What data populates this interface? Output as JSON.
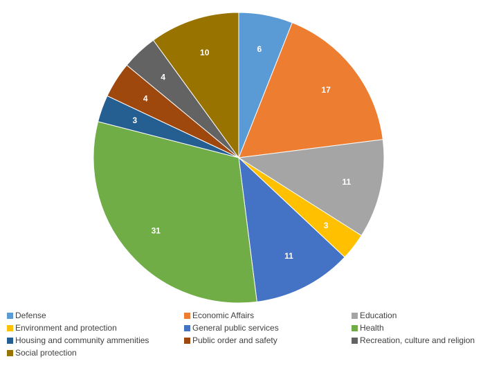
{
  "chart_data": {
    "type": "pie",
    "title": "",
    "categories": [
      "Defense",
      "Economic Affairs",
      "Education",
      "Environment and protection",
      "General public services",
      "Health",
      "Housing and community ammenities",
      "Public order and safety",
      "Recreation, culture and religion",
      "Social protection"
    ],
    "values": [
      6,
      17,
      11,
      3,
      11,
      31,
      3,
      4,
      4,
      10
    ],
    "value_labels": [
      "6",
      "17",
      "11",
      "3",
      "11",
      "31",
      "3",
      "4",
      "4",
      "10"
    ],
    "colors": [
      "#5b9bd5",
      "#ed7d31",
      "#a5a5a5",
      "#ffc000",
      "#4472c4",
      "#70ad47",
      "#255e91",
      "#9e480e",
      "#636363",
      "#997300"
    ],
    "label_colors": [
      "#ffffff",
      "#ffffff",
      "#ffffff",
      "#ffffff",
      "#ffffff",
      "#ffffff",
      "#ffffff",
      "#ffffff",
      "#ffffff",
      "#ffffff"
    ],
    "legend_position": "bottom"
  }
}
